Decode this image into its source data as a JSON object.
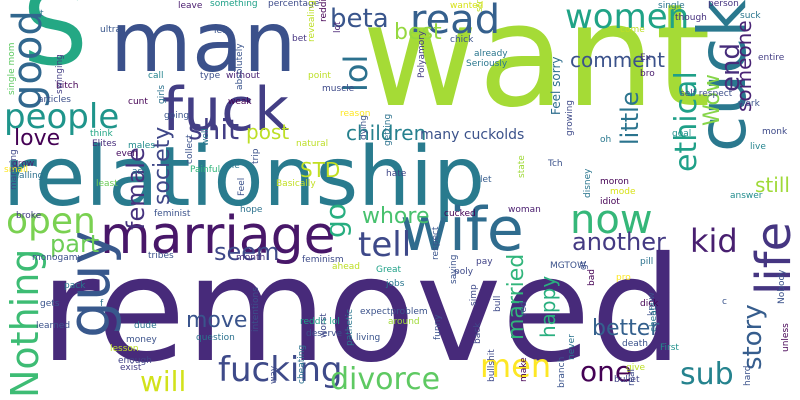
{
  "words": [
    {
      "text": "removed",
      "color": "#472a7a"
    },
    {
      "text": "want",
      "color": "#a5db36"
    },
    {
      "text": "relationship",
      "color": "#297b8e"
    },
    {
      "text": "man",
      "color": "#3b518b"
    },
    {
      "text": "S",
      "color": "#24a884"
    },
    {
      "text": "fuck",
      "color": "#433e85"
    },
    {
      "text": "cuck",
      "color": "#2a788e"
    },
    {
      "text": "wife",
      "color": "#2f6c8e"
    },
    {
      "text": "marriage",
      "color": "#481769"
    },
    {
      "text": "read",
      "color": "#35608d"
    },
    {
      "text": "women",
      "color": "#20a386"
    },
    {
      "text": "people",
      "color": "#1f958b"
    },
    {
      "text": "guy",
      "color": "#38588c"
    },
    {
      "text": "Nothing",
      "color": "#3dbc74"
    },
    {
      "text": "open",
      "color": "#7ad151"
    },
    {
      "text": "now",
      "color": "#35b779"
    },
    {
      "text": "good",
      "color": "#31678e"
    },
    {
      "text": "fucking",
      "color": "#3e4a89"
    },
    {
      "text": "divorce",
      "color": "#5ec962"
    },
    {
      "text": "shit",
      "color": "#433e85"
    },
    {
      "text": "tell",
      "color": "#3e4989"
    },
    {
      "text": "life",
      "color": "#453581"
    },
    {
      "text": "kid",
      "color": "#481f70"
    },
    {
      "text": "ethical",
      "color": "#1fa088"
    },
    {
      "text": "men",
      "color": "#fde725"
    },
    {
      "text": "lol",
      "color": "#2c718e"
    },
    {
      "text": "beta",
      "color": "#39558c"
    },
    {
      "text": "story",
      "color": "#365d8d"
    },
    {
      "text": "sub",
      "color": "#25838e"
    },
    {
      "text": "one",
      "color": "#440154"
    },
    {
      "text": "will",
      "color": "#d2e21b"
    },
    {
      "text": "another",
      "color": "#443a83"
    },
    {
      "text": "female",
      "color": "#46327e"
    },
    {
      "text": "whore",
      "color": "#48c16e"
    },
    {
      "text": "children",
      "color": "#26818e"
    },
    {
      "text": "comment",
      "color": "#3b528b"
    },
    {
      "text": "best",
      "color": "#95d840"
    },
    {
      "text": "society",
      "color": "#3f4788"
    },
    {
      "text": "little",
      "color": "#2b748e"
    },
    {
      "text": "seem",
      "color": "#3f4889"
    },
    {
      "text": "part",
      "color": "#6ece58"
    },
    {
      "text": "go",
      "color": "#28ae80"
    },
    {
      "text": "love",
      "color": "#440154"
    },
    {
      "text": "post",
      "color": "#bddf26"
    },
    {
      "text": "end",
      "color": "#472d7b"
    },
    {
      "text": "someone",
      "color": "#482374"
    },
    {
      "text": "Wow",
      "color": "#86d549"
    },
    {
      "text": "still",
      "color": "#a0da39"
    },
    {
      "text": "better",
      "color": "#34608d"
    },
    {
      "text": "married",
      "color": "#31b57b"
    },
    {
      "text": "happy",
      "color": "#29af7f"
    },
    {
      "text": "move",
      "color": "#3a548c"
    },
    {
      "text": "STD",
      "color": "#c2df23"
    },
    {
      "text": "many cuckolds",
      "color": "#3b528b"
    },
    {
      "text": "Feel sorry",
      "color": "#2e6e8e"
    }
  ],
  "small_words": [
    {
      "text": "t",
      "color": "#2c728e"
    },
    {
      "text": "leave",
      "color": "#481b6d"
    },
    {
      "text": "something",
      "color": "#1fa188"
    },
    {
      "text": "percentage",
      "color": "#3e4c8a"
    },
    {
      "text": "wanted",
      "color": "#d8e219"
    },
    {
      "text": "single",
      "color": "#2a768e"
    },
    {
      "text": "person",
      "color": "#463480"
    },
    {
      "text": "suck",
      "color": "#2a768e"
    },
    {
      "text": "ultra",
      "color": "#39568c"
    },
    {
      "text": "led",
      "color": "#3a538b"
    },
    {
      "text": "bet",
      "color": "#463480"
    },
    {
      "text": "lot",
      "color": "#482374"
    },
    {
      "text": "reddit",
      "color": "#440154"
    },
    {
      "text": "chick",
      "color": "#3b528b"
    },
    {
      "text": "though",
      "color": "#46307e"
    },
    {
      "text": "self respect",
      "color": "#3c4f8a"
    },
    {
      "text": "entire",
      "color": "#433d84"
    },
    {
      "text": "come",
      "color": "#bddf26"
    },
    {
      "text": "Seriously",
      "color": "#2a778e"
    },
    {
      "text": "Ex",
      "color": "#46307e"
    },
    {
      "text": "bro",
      "color": "#481b6d"
    },
    {
      "text": "single mom",
      "color": "#5ec962"
    },
    {
      "text": "bitch",
      "color": "#440154"
    },
    {
      "text": "swinging",
      "color": "#433d84"
    },
    {
      "text": "articles",
      "color": "#3c4f8a"
    },
    {
      "text": "cunt",
      "color": "#440154"
    },
    {
      "text": "call",
      "color": "#25848e"
    },
    {
      "text": "type",
      "color": "#3c508b"
    },
    {
      "text": "without",
      "color": "#482173"
    },
    {
      "text": "point",
      "color": "#bddf26"
    },
    {
      "text": "muscle",
      "color": "#3e4a89"
    },
    {
      "text": "weak",
      "color": "#440154"
    },
    {
      "text": "going",
      "color": "#3a548c"
    },
    {
      "text": "reason",
      "color": "#fde725"
    },
    {
      "text": "natural",
      "color": "#bddf26"
    },
    {
      "text": "think",
      "color": "#22a785"
    },
    {
      "text": "Elites",
      "color": "#472d7b"
    },
    {
      "text": "males",
      "color": "#228c8d"
    },
    {
      "text": "even",
      "color": "#470d60"
    },
    {
      "text": "ass",
      "color": "#2c728e"
    },
    {
      "text": "grow",
      "color": "#481f70"
    },
    {
      "text": "calling",
      "color": "#2d718e"
    },
    {
      "text": "least",
      "color": "#6ece58"
    },
    {
      "text": "Painful",
      "color": "#31b57b"
    },
    {
      "text": "die",
      "color": "#2a768e"
    },
    {
      "text": "Basically",
      "color": "#c2df23"
    },
    {
      "text": "hate",
      "color": "#3f4788"
    },
    {
      "text": "let",
      "color": "#365c8d"
    },
    {
      "text": "moron",
      "color": "#440154"
    },
    {
      "text": "mode",
      "color": "#d8e219"
    },
    {
      "text": "answer",
      "color": "#228c8d"
    },
    {
      "text": "goal",
      "color": "#21918c"
    },
    {
      "text": "live",
      "color": "#25848e"
    },
    {
      "text": "monk",
      "color": "#3e4a89"
    },
    {
      "text": "work",
      "color": "#3b528b"
    },
    {
      "text": "oh",
      "color": "#2a788e"
    },
    {
      "text": "small",
      "color": "#fde725"
    },
    {
      "text": "marrying",
      "color": "#3f4788"
    },
    {
      "text": "Feel",
      "color": "#3b528b"
    },
    {
      "text": "hope",
      "color": "#2c728e"
    },
    {
      "text": "broke",
      "color": "#433d84"
    },
    {
      "text": "feminist",
      "color": "#3b528b"
    },
    {
      "text": "cucked",
      "color": "#440154"
    },
    {
      "text": "woman",
      "color": "#481b6d"
    },
    {
      "text": "idiot",
      "color": "#440154"
    },
    {
      "text": "monogamy",
      "color": "#3c4f8a"
    },
    {
      "text": "tribes",
      "color": "#3b528b"
    },
    {
      "text": "feminism",
      "color": "#3e4c8a"
    },
    {
      "text": "month",
      "color": "#472d7b"
    },
    {
      "text": "ahead",
      "color": "#bddf26"
    },
    {
      "text": "Great",
      "color": "#1fa188"
    },
    {
      "text": "jobs",
      "color": "#2a768e"
    },
    {
      "text": "poly",
      "color": "#3e4a89"
    },
    {
      "text": "pay",
      "color": "#404387"
    },
    {
      "text": "MGTOW",
      "color": "#3b528b"
    },
    {
      "text": "pro",
      "color": "#fde725"
    },
    {
      "text": "pill",
      "color": "#2c728e"
    },
    {
      "text": "pack",
      "color": "#2a768e"
    },
    {
      "text": "gets",
      "color": "#3a548c"
    },
    {
      "text": "dude",
      "color": "#2c728e"
    },
    {
      "text": "money",
      "color": "#3b528b"
    },
    {
      "text": "lesson",
      "color": "#bddf26"
    },
    {
      "text": "enough",
      "color": "#404387"
    },
    {
      "text": "exist",
      "color": "#433d84"
    },
    {
      "text": "learned",
      "color": "#3b528b"
    },
    {
      "text": "reddit lol",
      "color": "#1fa188"
    },
    {
      "text": "question",
      "color": "#2c728e"
    },
    {
      "text": "deserve",
      "color": "#3c4f8a"
    },
    {
      "text": "expectproblem",
      "color": "#3b528b"
    },
    {
      "text": "around",
      "color": "#a0da39"
    },
    {
      "text": "living",
      "color": "#3a548c"
    },
    {
      "text": "worst",
      "color": "#3f4788"
    },
    {
      "text": "pathetic",
      "color": "#2a768e"
    },
    {
      "text": "way",
      "color": "#3e4a89"
    },
    {
      "text": "cheating",
      "color": "#2c728e"
    },
    {
      "text": "saying",
      "color": "#3b528b"
    },
    {
      "text": "simp",
      "color": "#3e4a89"
    },
    {
      "text": "red",
      "color": "#3c508b"
    },
    {
      "text": "bad",
      "color": "#440154"
    },
    {
      "text": "know",
      "color": "#3c4f8a"
    },
    {
      "text": "cheats",
      "color": "#2a768e"
    },
    {
      "text": "First",
      "color": "#21918c"
    },
    {
      "text": "death",
      "color": "#3b528b"
    },
    {
      "text": "give",
      "color": "#bddf26"
    },
    {
      "text": "bullet",
      "color": "#404387"
    },
    {
      "text": "real",
      "color": "#3e4a89"
    },
    {
      "text": "hard",
      "color": "#3b528b"
    },
    {
      "text": "make",
      "color": "#440154"
    },
    {
      "text": "branch",
      "color": "#3a548c"
    },
    {
      "text": "never",
      "color": "#2c728e"
    },
    {
      "text": "bullshit",
      "color": "#3e4a89"
    },
    {
      "text": "dick",
      "color": "#440154"
    },
    {
      "text": "funny",
      "color": "#3b528b"
    },
    {
      "text": "back",
      "color": "#3f4788"
    },
    {
      "text": "Nobody",
      "color": "#3b528b"
    },
    {
      "text": "unless",
      "color": "#440154"
    },
    {
      "text": "intentions",
      "color": "#3c4f8a"
    },
    {
      "text": "absolutely",
      "color": "#3a548c"
    },
    {
      "text": "Polyamory",
      "color": "#433d84"
    },
    {
      "text": "growing",
      "color": "#3e4a89"
    },
    {
      "text": "disney",
      "color": "#2a768e"
    },
    {
      "text": "state",
      "color": "#a0da39"
    },
    {
      "text": "getting",
      "color": "#2c728e"
    },
    {
      "text": "dying",
      "color": "#3b528b"
    },
    {
      "text": "collect",
      "color": "#3b528b"
    },
    {
      "text": "well",
      "color": "#2a768e"
    },
    {
      "text": "girls",
      "color": "#2c728e"
    },
    {
      "text": "revealing",
      "color": "#bddf26"
    },
    {
      "text": "strong",
      "color": "#bddf26"
    },
    {
      "text": "gt",
      "color": "#3c4f8a"
    },
    {
      "text": "bull",
      "color": "#3e4a89"
    },
    {
      "text": "respect",
      "color": "#3a548c"
    },
    {
      "text": "trip",
      "color": "#3b528b"
    },
    {
      "text": "already",
      "color": "#2a768e"
    },
    {
      "text": "Tch",
      "color": "#3b528b"
    },
    {
      "text": "c",
      "color": "#3a548c"
    },
    {
      "text": "f",
      "color": "#2c728e"
    },
    {
      "text": "n",
      "color": "#2a768e"
    },
    {
      "text": "o",
      "color": "#3b528b"
    }
  ]
}
